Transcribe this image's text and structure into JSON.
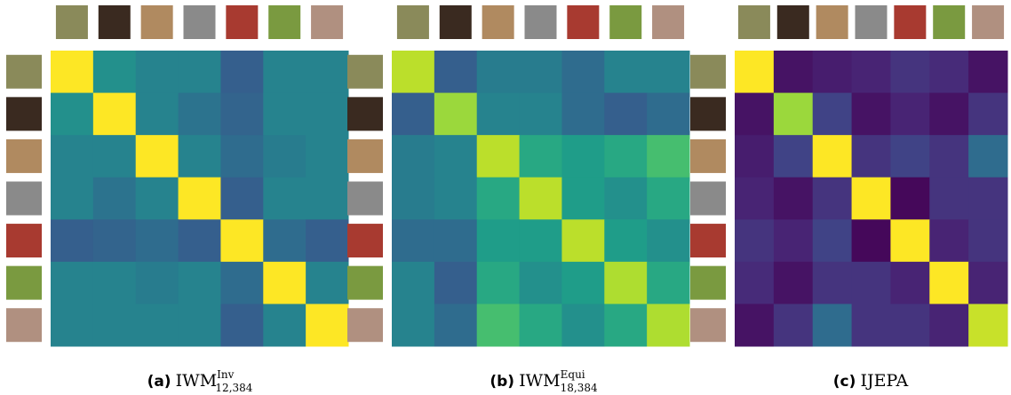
{
  "chart_data": [
    {
      "type": "heatmap",
      "caption_label": "(a)",
      "caption_main": "IWM",
      "caption_sup": "Inv",
      "caption_sub": "12,384",
      "values": [
        [
          1,
          0.5,
          0.45,
          0.45,
          0.3,
          0.45,
          0.45
        ],
        [
          0.5,
          1,
          0.45,
          0.38,
          0.32,
          0.45,
          0.45
        ],
        [
          0.45,
          0.45,
          1,
          0.45,
          0.35,
          0.42,
          0.45
        ],
        [
          0.45,
          0.38,
          0.45,
          1,
          0.3,
          0.45,
          0.45
        ],
        [
          0.3,
          0.32,
          0.35,
          0.3,
          1,
          0.35,
          0.3
        ],
        [
          0.45,
          0.45,
          0.42,
          0.45,
          0.35,
          1,
          0.45
        ],
        [
          0.45,
          0.45,
          0.45,
          0.45,
          0.3,
          0.45,
          1
        ]
      ]
    },
    {
      "type": "heatmap",
      "caption_label": "(b)",
      "caption_main": "IWM",
      "caption_sup": "Equi",
      "caption_sub": "18,384",
      "values": [
        [
          0.9,
          0.3,
          0.42,
          0.42,
          0.35,
          0.45,
          0.45
        ],
        [
          0.3,
          0.85,
          0.45,
          0.45,
          0.35,
          0.3,
          0.35
        ],
        [
          0.42,
          0.45,
          0.9,
          0.6,
          0.55,
          0.6,
          0.7
        ],
        [
          0.42,
          0.45,
          0.6,
          0.9,
          0.55,
          0.5,
          0.6
        ],
        [
          0.35,
          0.35,
          0.55,
          0.55,
          0.9,
          0.55,
          0.5
        ],
        [
          0.45,
          0.3,
          0.6,
          0.5,
          0.55,
          0.88,
          0.6
        ],
        [
          0.45,
          0.35,
          0.7,
          0.6,
          0.5,
          0.6,
          0.88
        ]
      ]
    },
    {
      "type": "heatmap",
      "caption_label": "(c)",
      "caption_main": "IJEPA",
      "values": [
        [
          1,
          0.05,
          0.08,
          0.1,
          0.15,
          0.12,
          0.05
        ],
        [
          0.05,
          0.85,
          0.2,
          0.05,
          0.1,
          0.05,
          0.15
        ],
        [
          0.08,
          0.2,
          1,
          0.15,
          0.2,
          0.15,
          0.35
        ],
        [
          0.1,
          0.05,
          0.15,
          1,
          0.02,
          0.15,
          0.15
        ],
        [
          0.15,
          0.1,
          0.2,
          0.02,
          1,
          0.1,
          0.15
        ],
        [
          0.12,
          0.05,
          0.15,
          0.15,
          0.1,
          1,
          0.1
        ],
        [
          0.05,
          0.15,
          0.35,
          0.15,
          0.15,
          0.1,
          0.92
        ]
      ]
    }
  ]
}
